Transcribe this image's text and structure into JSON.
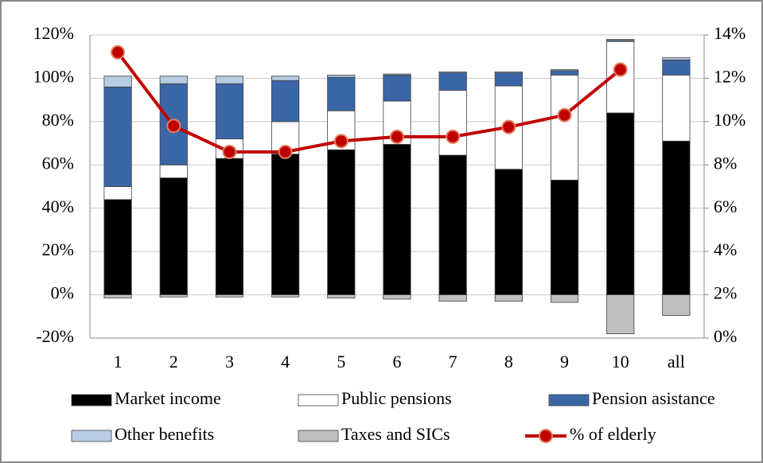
{
  "chart_data": {
    "type": "bar",
    "stacked": true,
    "categories": [
      "1",
      "2",
      "3",
      "4",
      "5",
      "6",
      "7",
      "8",
      "9",
      "10",
      "all"
    ],
    "series": [
      {
        "name": "Market income",
        "color": "#000000",
        "values": [
          44,
          54,
          63,
          65,
          67,
          69.5,
          64.5,
          58,
          53,
          84,
          71
        ]
      },
      {
        "name": "Public pensions",
        "color": "#ffffff",
        "values": [
          6,
          6,
          9,
          15,
          18,
          20,
          30,
          38.5,
          48.5,
          33,
          30.5
        ]
      },
      {
        "name": "Pension asistance",
        "color": "#3b66a6",
        "values": [
          46,
          37.5,
          25.5,
          19,
          15.5,
          12,
          8,
          6,
          2,
          0.5,
          7
        ]
      },
      {
        "name": "Other benefits",
        "color": "#b8cce4",
        "values": [
          5,
          3.5,
          3.5,
          2,
          1,
          0.5,
          0.5,
          0.5,
          0.5,
          0.5,
          1
        ]
      },
      {
        "name": "Taxes and SICs",
        "color": "#c0c0c0",
        "values": [
          -1.5,
          -1,
          -1,
          -1,
          -1.5,
          -2,
          -3,
          -3,
          -3.5,
          -18,
          -9.5
        ]
      },
      {
        "name": "% of elderly",
        "type": "line",
        "axis": "y2",
        "color": "#c00000",
        "values": [
          13.2,
          9.8,
          8.6,
          8.6,
          9.1,
          9.3,
          9.3,
          9.75,
          10.3,
          12.4,
          null
        ]
      }
    ],
    "ylim": [
      -20,
      120
    ],
    "yticks": [
      {
        "value": -20,
        "label": "-20%"
      },
      {
        "value": 0,
        "label": "0%"
      },
      {
        "value": 20,
        "label": "20%"
      },
      {
        "value": 40,
        "label": "40%"
      },
      {
        "value": 60,
        "label": "60%"
      },
      {
        "value": 80,
        "label": "80%"
      },
      {
        "value": 100,
        "label": "100%"
      },
      {
        "value": 120,
        "label": "120%"
      }
    ],
    "y2lim": [
      0,
      14
    ],
    "y2ticks": [
      {
        "value": 0,
        "label": "0%"
      },
      {
        "value": 2,
        "label": "2%"
      },
      {
        "value": 4,
        "label": "4%"
      },
      {
        "value": 6,
        "label": "6%"
      },
      {
        "value": 8,
        "label": "8%"
      },
      {
        "value": 10,
        "label": "10%"
      },
      {
        "value": 12,
        "label": "12%"
      },
      {
        "value": 14,
        "label": "14%"
      }
    ],
    "grid": true
  }
}
